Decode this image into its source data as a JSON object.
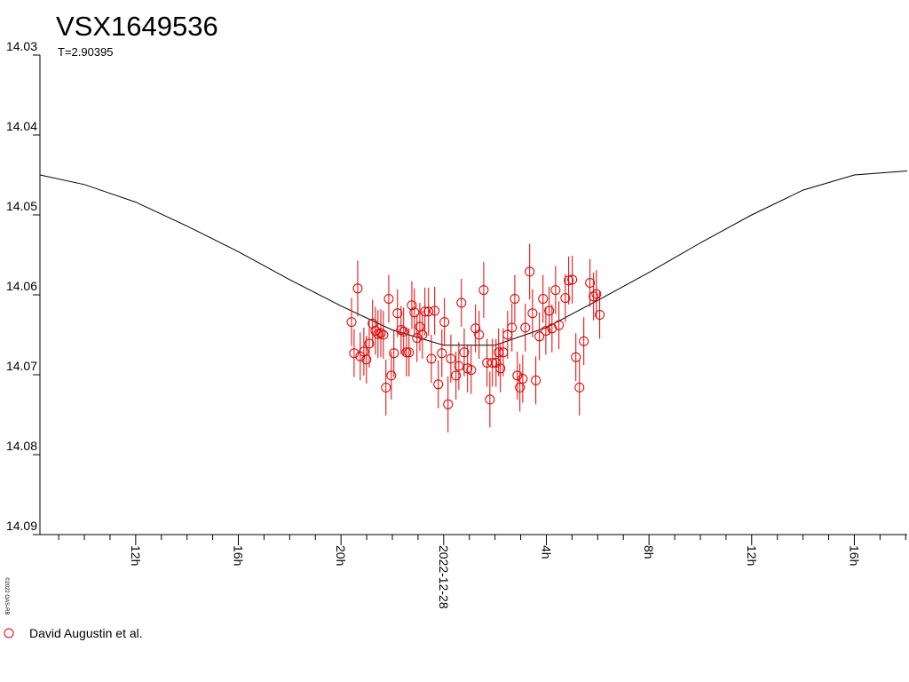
{
  "chart_data": {
    "type": "scatter",
    "title": "VSX1649536",
    "subtitle": "T=2.90395",
    "copyright": "©2022 OAS-RB",
    "xlim": [
      -15.73,
      18.06
    ],
    "ylim": [
      14.03,
      14.09
    ],
    "y_inverted": true,
    "yticks": [
      {
        "value": 14.03,
        "label": "14.03"
      },
      {
        "value": 14.04,
        "label": "14.04"
      },
      {
        "value": 14.05,
        "label": "14.05"
      },
      {
        "value": 14.06,
        "label": "14.06"
      },
      {
        "value": 14.07,
        "label": "14.07"
      },
      {
        "value": 14.08,
        "label": "14.08"
      },
      {
        "value": 14.09,
        "label": "14.09"
      }
    ],
    "xticks": [
      {
        "value": -12,
        "label": "12h"
      },
      {
        "value": -8,
        "label": "16h"
      },
      {
        "value": -4,
        "label": "20h"
      },
      {
        "value": 0,
        "label": "2022-12-28"
      },
      {
        "value": 4,
        "label": "4h"
      },
      {
        "value": 8,
        "label": "8h"
      },
      {
        "value": 12,
        "label": "12h"
      },
      {
        "value": 16,
        "label": "16h"
      }
    ],
    "xticks_minor": [
      -15,
      -14,
      -13,
      -11,
      -10,
      -9,
      -7,
      -6,
      -5,
      -3,
      -2,
      -1,
      1,
      2,
      3,
      5,
      6,
      7,
      9,
      10,
      11,
      13,
      14,
      15,
      17,
      18
    ],
    "legend": "bottom-left",
    "curve": {
      "color": "#000000",
      "x": [
        -15.73,
        -14,
        -12,
        -10,
        -8,
        -6,
        -4,
        -2,
        0,
        2,
        4,
        6,
        8,
        10,
        12,
        14,
        16,
        18.06
      ],
      "values": [
        14.045,
        14.0462,
        14.0484,
        14.0514,
        14.0546,
        14.0581,
        14.0614,
        14.0644,
        14.0663,
        14.0663,
        14.0641,
        14.0607,
        14.0572,
        14.0535,
        14.05,
        14.0469,
        14.045,
        14.0445
      ]
    },
    "series": [
      {
        "name": "David Augustin et al.",
        "color": "#e00000",
        "x": [
          -3.59,
          -3.49,
          -3.35,
          -3.25,
          -3.11,
          -3.01,
          -2.9,
          -2.77,
          -2.66,
          -2.56,
          -2.45,
          -2.35,
          -2.25,
          -2.14,
          -2.04,
          -1.94,
          -1.8,
          -1.66,
          -1.56,
          -1.45,
          -1.35,
          -1.24,
          -1.14,
          -1.04,
          -0.93,
          -0.83,
          -0.73,
          -0.59,
          -0.48,
          -0.35,
          -0.21,
          -0.07,
          0.03,
          0.17,
          0.28,
          0.48,
          0.59,
          0.69,
          0.8,
          0.93,
          1.07,
          1.24,
          1.38,
          1.56,
          1.69,
          1.8,
          1.9,
          2.04,
          2.14,
          2.21,
          2.32,
          2.49,
          2.66,
          2.77,
          2.87,
          2.97,
          3.08,
          3.18,
          3.35,
          3.46,
          3.59,
          3.73,
          3.87,
          3.98,
          4.11,
          4.22,
          4.36,
          4.49,
          4.74,
          4.87,
          5.01,
          5.15,
          5.29,
          5.46,
          5.7,
          5.84,
          5.95,
          6.08
        ],
        "values": [
          14.0634,
          14.0673,
          14.0592,
          14.0677,
          14.0671,
          14.0681,
          14.0661,
          14.0636,
          14.0645,
          14.0649,
          14.0648,
          14.065,
          14.0716,
          14.0605,
          14.0701,
          14.0673,
          14.0623,
          14.0644,
          14.0646,
          14.0672,
          14.0672,
          14.0613,
          14.0622,
          14.0654,
          14.064,
          14.065,
          14.0621,
          14.0621,
          14.068,
          14.062,
          14.0712,
          14.0673,
          14.0634,
          14.0737,
          14.068,
          14.0701,
          14.0689,
          14.061,
          14.0672,
          14.0692,
          14.0694,
          14.0642,
          14.065,
          14.0594,
          14.0685,
          14.0731,
          14.0685,
          14.0685,
          14.0672,
          14.0692,
          14.0672,
          14.065,
          14.0641,
          14.0605,
          14.0701,
          14.0716,
          14.0705,
          14.0641,
          14.0571,
          14.0623,
          14.0707,
          14.0652,
          14.0605,
          14.0645,
          14.062,
          14.0642,
          14.0594,
          14.0638,
          14.0604,
          14.0582,
          14.0581,
          14.0678,
          14.0716,
          14.0658,
          14.0585,
          14.0602,
          14.0599,
          14.0625
        ],
        "errors": [
          0.003,
          0.003,
          0.0035,
          0.003,
          0.003,
          0.003,
          0.003,
          0.003,
          0.003,
          0.003,
          0.003,
          0.003,
          0.0035,
          0.003,
          0.003,
          0.003,
          0.003,
          0.003,
          0.003,
          0.003,
          0.003,
          0.003,
          0.003,
          0.003,
          0.003,
          0.003,
          0.003,
          0.003,
          0.003,
          0.003,
          0.003,
          0.003,
          0.003,
          0.0035,
          0.003,
          0.003,
          0.003,
          0.003,
          0.003,
          0.003,
          0.003,
          0.003,
          0.003,
          0.0035,
          0.003,
          0.0035,
          0.003,
          0.003,
          0.003,
          0.003,
          0.003,
          0.003,
          0.003,
          0.003,
          0.003,
          0.003,
          0.003,
          0.003,
          0.0035,
          0.003,
          0.003,
          0.003,
          0.003,
          0.003,
          0.003,
          0.003,
          0.003,
          0.003,
          0.003,
          0.003,
          0.003,
          0.003,
          0.0035,
          0.003,
          0.003,
          0.003,
          0.003,
          0.003
        ]
      }
    ]
  }
}
